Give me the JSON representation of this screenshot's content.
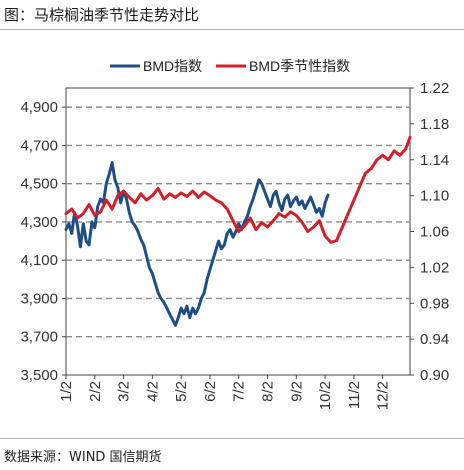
{
  "page": {
    "title": "图：马棕榈油季节性走势对比",
    "source": "数据来源：WIND 国信期货"
  },
  "chart_data": {
    "type": "line",
    "title": "",
    "legend_position": "top",
    "grid": "horizontal-dashed",
    "x_categories": [
      "1/2",
      "2/2",
      "3/2",
      "4/2",
      "5/2",
      "6/2",
      "7/2",
      "8/2",
      "9/2",
      "10/2",
      "11/2",
      "12/2"
    ],
    "x_range_months": [
      0,
      11.95
    ],
    "left_axis": {
      "min": 3500,
      "max": 5000,
      "ticks": [
        3500,
        3700,
        3900,
        4100,
        4300,
        4500,
        4700,
        4900
      ],
      "tick_labels": [
        "3,500",
        "3,700",
        "3,900",
        "4,100",
        "4,300",
        "4,500",
        "4,700",
        "4,900"
      ]
    },
    "right_axis": {
      "min": 0.9,
      "max": 1.22,
      "ticks": [
        0.9,
        0.94,
        0.98,
        1.02,
        1.06,
        1.1,
        1.14,
        1.18,
        1.22
      ],
      "tick_labels": [
        "0.90",
        "0.94",
        "0.98",
        "1.02",
        "1.06",
        "1.10",
        "1.14",
        "1.18",
        "1.22"
      ]
    },
    "series": [
      {
        "name": "BMD指数",
        "axis": "left",
        "color": "#1f4e86",
        "x": [
          0.0,
          0.1,
          0.2,
          0.3,
          0.4,
          0.5,
          0.6,
          0.7,
          0.8,
          0.9,
          1.0,
          1.1,
          1.2,
          1.3,
          1.4,
          1.5,
          1.6,
          1.7,
          1.8,
          1.9,
          2.0,
          2.1,
          2.2,
          2.3,
          2.4,
          2.5,
          2.6,
          2.7,
          2.8,
          2.9,
          3.0,
          3.1,
          3.2,
          3.3,
          3.4,
          3.5,
          3.6,
          3.7,
          3.8,
          3.9,
          4.0,
          4.1,
          4.2,
          4.3,
          4.4,
          4.5,
          4.6,
          4.7,
          4.8,
          4.9,
          5.0,
          5.1,
          5.2,
          5.3,
          5.4,
          5.5,
          5.6,
          5.7,
          5.8,
          5.9,
          6.0,
          6.1,
          6.2,
          6.3,
          6.4,
          6.5,
          6.6,
          6.7,
          6.8,
          6.9,
          7.0,
          7.1,
          7.2,
          7.3,
          7.4,
          7.5,
          7.6,
          7.7,
          7.8,
          7.9,
          8.0,
          8.1,
          8.2,
          8.3,
          8.4,
          8.5,
          8.6,
          8.7,
          8.8,
          8.9,
          9.0,
          9.1
        ],
        "values": [
          4260,
          4290,
          4240,
          4350,
          4280,
          4170,
          4290,
          4200,
          4180,
          4300,
          4270,
          4380,
          4420,
          4400,
          4500,
          4550,
          4610,
          4520,
          4480,
          4400,
          4460,
          4420,
          4350,
          4300,
          4280,
          4250,
          4210,
          4180,
          4120,
          4060,
          4030,
          3980,
          3930,
          3900,
          3880,
          3850,
          3820,
          3790,
          3760,
          3800,
          3850,
          3820,
          3860,
          3800,
          3850,
          3820,
          3850,
          3900,
          3930,
          4000,
          4050,
          4100,
          4150,
          4200,
          4160,
          4180,
          4240,
          4260,
          4220,
          4250,
          4290,
          4260,
          4300,
          4330,
          4380,
          4420,
          4470,
          4520,
          4500,
          4460,
          4420,
          4380,
          4440,
          4460,
          4400,
          4360,
          4420,
          4440,
          4380,
          4410,
          4430,
          4390,
          4410,
          4370,
          4400,
          4430,
          4390,
          4350,
          4370,
          4330,
          4400,
          4440
        ],
        "x_segment_note": ""
      },
      {
        "name": "BMD季节性指数",
        "axis": "right",
        "color": "#d41f2a",
        "x": [
          0.0,
          0.2,
          0.4,
          0.6,
          0.8,
          1.0,
          1.2,
          1.4,
          1.6,
          1.8,
          2.0,
          2.2,
          2.4,
          2.6,
          2.8,
          3.0,
          3.2,
          3.4,
          3.6,
          3.8,
          4.0,
          4.2,
          4.4,
          4.6,
          4.8,
          5.0,
          5.2,
          5.4,
          5.6,
          5.8,
          6.0,
          6.2,
          6.4,
          6.6,
          6.8,
          7.0,
          7.2,
          7.4,
          7.6,
          7.8,
          8.0,
          8.2,
          8.4,
          8.6,
          8.8,
          9.0,
          9.2,
          9.4,
          9.6,
          9.8,
          10.0,
          10.2,
          10.4,
          10.6,
          10.8,
          11.0,
          11.2,
          11.4,
          11.6,
          11.8,
          11.95
        ],
        "values": [
          1.08,
          1.085,
          1.075,
          1.08,
          1.09,
          1.078,
          1.082,
          1.095,
          1.085,
          1.1,
          1.105,
          1.098,
          1.092,
          1.102,
          1.095,
          1.1,
          1.108,
          1.096,
          1.102,
          1.098,
          1.103,
          1.099,
          1.105,
          1.098,
          1.104,
          1.1,
          1.095,
          1.092,
          1.085,
          1.072,
          1.06,
          1.066,
          1.075,
          1.062,
          1.07,
          1.065,
          1.072,
          1.08,
          1.076,
          1.082,
          1.078,
          1.07,
          1.06,
          1.065,
          1.072,
          1.055,
          1.048,
          1.05,
          1.065,
          1.08,
          1.095,
          1.11,
          1.125,
          1.13,
          1.14,
          1.145,
          1.14,
          1.15,
          1.145,
          1.152,
          1.165
        ]
      }
    ]
  }
}
